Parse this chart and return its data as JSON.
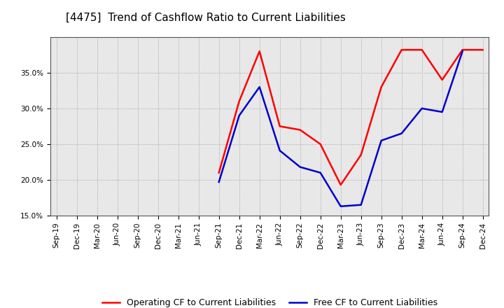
{
  "title": "[4475]  Trend of Cashflow Ratio to Current Liabilities",
  "x_labels": [
    "Sep-19",
    "Dec-19",
    "Mar-20",
    "Jun-20",
    "Sep-20",
    "Dec-20",
    "Mar-21",
    "Jun-21",
    "Sep-21",
    "Dec-21",
    "Mar-22",
    "Jun-22",
    "Sep-22",
    "Dec-22",
    "Mar-23",
    "Jun-23",
    "Sep-23",
    "Dec-23",
    "Mar-24",
    "Jun-24",
    "Sep-24",
    "Dec-24"
  ],
  "operating_cf": [
    null,
    null,
    null,
    null,
    null,
    null,
    null,
    null,
    0.21,
    0.31,
    0.38,
    0.275,
    0.27,
    0.25,
    0.193,
    0.235,
    0.33,
    0.382,
    0.382,
    0.34,
    0.382,
    0.382
  ],
  "free_cf": [
    null,
    null,
    null,
    null,
    null,
    null,
    null,
    null,
    0.197,
    0.29,
    0.33,
    0.241,
    0.218,
    0.21,
    0.163,
    0.165,
    0.255,
    0.265,
    0.3,
    0.295,
    0.38,
    null
  ],
  "ylim": [
    0.15,
    0.4
  ],
  "yticks": [
    0.15,
    0.2,
    0.25,
    0.3,
    0.35
  ],
  "operating_color": "#ff0000",
  "free_color": "#0000cc",
  "grid_color": "#999999",
  "background_color": "#ffffff",
  "plot_bg_color": "#e8e8e8",
  "title_fontsize": 11,
  "legend_fontsize": 9,
  "tick_fontsize": 7.5
}
